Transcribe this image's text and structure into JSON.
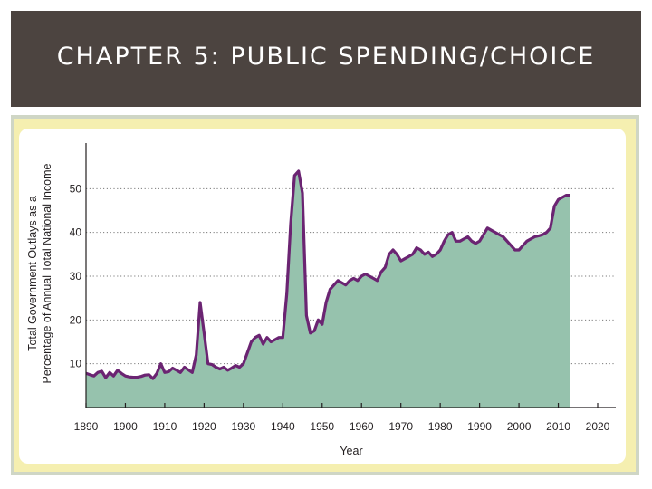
{
  "slide": {
    "title": "CHAPTER 5: PUBLIC SPENDING/CHOICE"
  },
  "colors": {
    "title_bar": "#4c4440",
    "area_fill": "#96c2ad",
    "line": "#6b2472",
    "frame": "#f5efb0"
  },
  "chart_data": {
    "type": "area",
    "title": "",
    "xlabel": "Year",
    "ylabel_lines": [
      "Total Government Outlays as a",
      "Percentage of Annual Total National Income"
    ],
    "xlim": [
      1890,
      2020
    ],
    "ylim": [
      0,
      60
    ],
    "x_ticks": [
      1890,
      1900,
      1910,
      1920,
      1930,
      1940,
      1950,
      1960,
      1970,
      1980,
      1990,
      2000,
      2010,
      2020
    ],
    "y_ticks": [
      10,
      20,
      30,
      40,
      50
    ],
    "grid": "horizontal dotted",
    "series": [
      {
        "x": [
          1890,
          1891,
          1892,
          1893,
          1894,
          1895,
          1896,
          1897,
          1898,
          1899,
          1900,
          1901,
          1902,
          1903,
          1904,
          1905,
          1906,
          1907,
          1908,
          1909,
          1910,
          1911,
          1912,
          1913,
          1914,
          1915,
          1916,
          1917,
          1918,
          1919,
          1920,
          1921,
          1922,
          1923,
          1924,
          1925,
          1926,
          1927,
          1928,
          1929,
          1930,
          1931,
          1932,
          1933,
          1934,
          1935,
          1936,
          1937,
          1938,
          1939,
          1940,
          1941,
          1942,
          1943,
          1944,
          1945,
          1946,
          1947,
          1948,
          1949,
          1950,
          1951,
          1952,
          1953,
          1954,
          1955,
          1956,
          1957,
          1958,
          1959,
          1960,
          1961,
          1962,
          1963,
          1964,
          1965,
          1966,
          1967,
          1968,
          1969,
          1970,
          1971,
          1972,
          1973,
          1974,
          1975,
          1976,
          1977,
          1978,
          1979,
          1980,
          1981,
          1982,
          1983,
          1984,
          1985,
          1986,
          1987,
          1988,
          1989,
          1990,
          1991,
          1992,
          1993,
          1994,
          1995,
          1996,
          1997,
          1998,
          1999,
          2000,
          2001,
          2002,
          2003,
          2004,
          2005,
          2006,
          2007,
          2008,
          2009,
          2010,
          2011,
          2012,
          2013
        ],
        "y": [
          7.8,
          7.5,
          7.2,
          8.0,
          8.3,
          6.8,
          8.0,
          7.2,
          8.5,
          7.8,
          7.2,
          7.0,
          6.9,
          6.9,
          7.1,
          7.4,
          7.5,
          6.6,
          7.8,
          10.0,
          8.0,
          8.2,
          9.0,
          8.5,
          8.0,
          9.2,
          8.6,
          8.0,
          12.0,
          24.0,
          17.0,
          10.0,
          9.8,
          9.2,
          8.8,
          9.2,
          8.5,
          9.0,
          9.6,
          9.2,
          10.0,
          12.5,
          15.0,
          16.0,
          16.5,
          14.5,
          16.0,
          15.0,
          15.5,
          16.0,
          16.0,
          26.0,
          42.0,
          53.0,
          54.0,
          49.0,
          21.0,
          17.0,
          17.5,
          20.0,
          19.0,
          24.0,
          27.0,
          28.0,
          29.0,
          28.5,
          28.0,
          29.0,
          29.5,
          29.0,
          30.0,
          30.5,
          30.0,
          29.5,
          29.0,
          31.0,
          32.0,
          35.0,
          36.0,
          35.0,
          33.5,
          34.0,
          34.5,
          35.0,
          36.5,
          36.0,
          35.0,
          35.5,
          34.5,
          35.0,
          36.0,
          38.0,
          39.5,
          40.0,
          38.0,
          38.0,
          38.5,
          39.0,
          38.0,
          37.5,
          38.0,
          39.5,
          41.0,
          40.5,
          40.0,
          39.5,
          39.0,
          38.0,
          37.0,
          36.0,
          36.0,
          37.0,
          38.0,
          38.5,
          39.0,
          39.2,
          39.5,
          40.0,
          41.0,
          46.0,
          47.5,
          48.0,
          48.5,
          48.5
        ]
      }
    ]
  }
}
